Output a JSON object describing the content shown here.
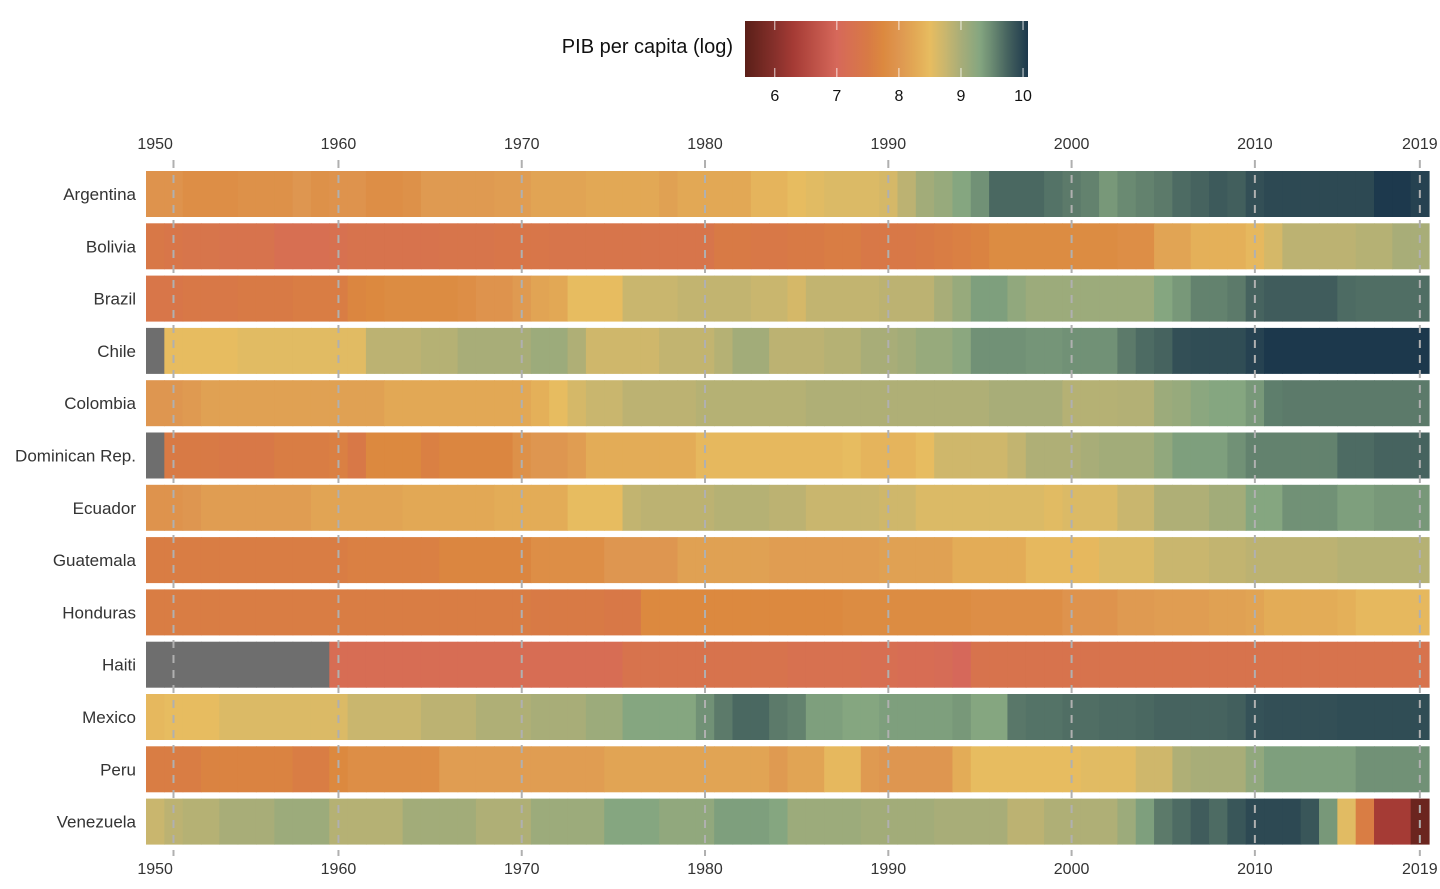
{
  "chart_data": {
    "type": "heatmap",
    "title": "PIB per capita (log)",
    "xlabel": "",
    "ylabel": "",
    "x_ticks": [
      "1950",
      "1960",
      "1970",
      "1980",
      "1990",
      "2000",
      "2010",
      "2019"
    ],
    "x_tick_years": [
      1950,
      1960,
      1970,
      1980,
      1990,
      2000,
      2010,
      2019
    ],
    "x_range": [
      1950,
      2019
    ],
    "colorbar": {
      "label": "PIB per capita (log)",
      "range": [
        5.52,
        10.08
      ],
      "ticks": [
        "6",
        "7",
        "8",
        "9",
        "10"
      ],
      "tick_values": [
        6,
        7,
        8,
        9,
        10
      ],
      "stops": [
        {
          "v": 5.52,
          "c": "#5a1f18"
        },
        {
          "v": 6.0,
          "c": "#86302b"
        },
        {
          "v": 6.3,
          "c": "#a53b35"
        },
        {
          "v": 7.0,
          "c": "#d6685a"
        },
        {
          "v": 7.5,
          "c": "#d87a45"
        },
        {
          "v": 7.75,
          "c": "#dc893f"
        },
        {
          "v": 8.0,
          "c": "#de9650"
        },
        {
          "v": 8.25,
          "c": "#e2a855"
        },
        {
          "v": 8.5,
          "c": "#e7bc60"
        },
        {
          "v": 8.75,
          "c": "#c9b66e"
        },
        {
          "v": 9.0,
          "c": "#a8ad78"
        },
        {
          "v": 9.3,
          "c": "#85a680"
        },
        {
          "v": 9.5,
          "c": "#6a8a72"
        },
        {
          "v": 9.75,
          "c": "#46635f"
        },
        {
          "v": 10.08,
          "c": "#1c384c"
        }
      ],
      "missing_color": "#6e6e6e"
    },
    "grid": "dashed vertical",
    "legend_position": "top-center",
    "rows": [
      {
        "country": "Argentina",
        "values": [
          7.95,
          7.95,
          7.85,
          7.85,
          7.85,
          7.9,
          7.9,
          7.9,
          8.0,
          7.9,
          7.95,
          7.95,
          7.85,
          7.85,
          7.9,
          8.05,
          8.05,
          8.05,
          8.05,
          8.1,
          8.1,
          8.2,
          8.2,
          8.2,
          8.25,
          8.25,
          8.25,
          8.25,
          8.15,
          8.25,
          8.25,
          8.25,
          8.25,
          8.4,
          8.4,
          8.5,
          8.55,
          8.6,
          8.6,
          8.6,
          8.65,
          8.85,
          9.05,
          9.15,
          9.3,
          9.45,
          9.72,
          9.72,
          9.72,
          9.65,
          9.6,
          9.55,
          9.4,
          9.5,
          9.55,
          9.6,
          9.7,
          9.75,
          9.82,
          9.78,
          9.9,
          9.95,
          9.95,
          9.95,
          9.95,
          9.95,
          9.95,
          10.07,
          10.07,
          10.0
        ]
      },
      {
        "country": "Bolivia",
        "values": [
          7.45,
          7.4,
          7.35,
          7.35,
          7.3,
          7.3,
          7.3,
          7.2,
          7.2,
          7.2,
          7.25,
          7.3,
          7.3,
          7.3,
          7.3,
          7.3,
          7.35,
          7.35,
          7.35,
          7.4,
          7.4,
          7.4,
          7.35,
          7.35,
          7.35,
          7.35,
          7.35,
          7.35,
          7.35,
          7.35,
          7.35,
          7.5,
          7.5,
          7.45,
          7.45,
          7.5,
          7.5,
          7.55,
          7.55,
          7.45,
          7.45,
          7.45,
          7.5,
          7.55,
          7.6,
          7.65,
          7.8,
          7.8,
          7.8,
          7.8,
          7.8,
          7.8,
          7.8,
          7.85,
          7.85,
          8.2,
          8.2,
          8.35,
          8.35,
          8.35,
          8.45,
          8.65,
          8.85,
          8.85,
          8.85,
          8.85,
          8.9,
          8.9,
          9.0,
          9.0
        ]
      },
      {
        "country": "Brazil",
        "values": [
          7.4,
          7.4,
          7.45,
          7.45,
          7.45,
          7.5,
          7.5,
          7.5,
          7.55,
          7.55,
          7.55,
          7.7,
          7.75,
          7.8,
          7.8,
          7.8,
          7.8,
          7.85,
          7.95,
          7.95,
          8.05,
          8.2,
          8.25,
          8.5,
          8.5,
          8.5,
          8.75,
          8.75,
          8.75,
          8.8,
          8.8,
          8.8,
          8.8,
          8.75,
          8.75,
          8.65,
          8.8,
          8.8,
          8.8,
          8.8,
          8.85,
          8.85,
          8.85,
          9.0,
          9.15,
          9.35,
          9.35,
          9.2,
          9.1,
          9.1,
          9.1,
          9.1,
          9.1,
          9.1,
          9.1,
          9.3,
          9.4,
          9.55,
          9.55,
          9.6,
          9.75,
          9.8,
          9.8,
          9.8,
          9.8,
          9.7,
          9.68,
          9.68,
          9.68,
          9.68
        ]
      },
      {
        "country": "Chile",
        "values": [
          null,
          8.5,
          8.5,
          8.5,
          8.5,
          8.55,
          8.55,
          8.55,
          8.55,
          8.55,
          8.55,
          8.55,
          8.85,
          8.85,
          8.85,
          8.9,
          8.9,
          9.0,
          9.0,
          9.0,
          9.0,
          9.1,
          9.1,
          8.95,
          8.7,
          8.7,
          8.7,
          8.7,
          8.8,
          8.8,
          8.8,
          8.9,
          9.05,
          9.05,
          8.85,
          8.85,
          8.85,
          8.9,
          8.9,
          9.0,
          9.0,
          9.05,
          9.15,
          9.15,
          9.25,
          9.45,
          9.45,
          9.45,
          9.42,
          9.42,
          9.45,
          9.45,
          9.45,
          9.6,
          9.7,
          9.75,
          9.9,
          9.92,
          9.92,
          9.92,
          10.0,
          10.08,
          10.08,
          10.08,
          10.08,
          10.08,
          10.08,
          10.08,
          10.08,
          10.08
        ]
      },
      {
        "country": "Colombia",
        "values": [
          8.0,
          8.0,
          8.05,
          8.15,
          8.15,
          8.15,
          8.15,
          8.15,
          8.15,
          8.15,
          8.15,
          8.15,
          8.15,
          8.25,
          8.25,
          8.25,
          8.25,
          8.25,
          8.25,
          8.25,
          8.25,
          8.35,
          8.5,
          8.65,
          8.75,
          8.75,
          8.85,
          8.85,
          8.85,
          8.85,
          8.9,
          8.9,
          8.9,
          8.9,
          8.9,
          8.9,
          8.95,
          8.95,
          8.95,
          8.95,
          8.95,
          8.95,
          8.95,
          8.95,
          8.95,
          8.95,
          9.0,
          9.0,
          9.0,
          9.0,
          8.9,
          8.9,
          8.9,
          8.92,
          8.92,
          9.1,
          9.15,
          9.25,
          9.3,
          9.3,
          9.4,
          9.58,
          9.6,
          9.6,
          9.6,
          9.6,
          9.6,
          9.6,
          9.6,
          9.6
        ]
      },
      {
        "country": "Dominican Rep.",
        "values": [
          null,
          7.5,
          7.5,
          7.5,
          7.45,
          7.45,
          7.45,
          7.55,
          7.55,
          7.55,
          7.6,
          7.45,
          7.75,
          7.75,
          7.75,
          7.6,
          7.7,
          7.7,
          7.7,
          7.7,
          7.9,
          8.0,
          8.0,
          8.1,
          8.3,
          8.3,
          8.3,
          8.3,
          8.3,
          8.3,
          8.45,
          8.45,
          8.45,
          8.45,
          8.45,
          8.45,
          8.45,
          8.45,
          8.5,
          8.4,
          8.4,
          8.4,
          8.5,
          8.7,
          8.7,
          8.7,
          8.7,
          8.8,
          8.95,
          8.95,
          8.95,
          9.0,
          9.05,
          9.05,
          9.05,
          9.2,
          9.35,
          9.35,
          9.35,
          9.45,
          9.55,
          9.55,
          9.55,
          9.55,
          9.55,
          9.7,
          9.7,
          9.75,
          9.75,
          9.75
        ]
      },
      {
        "country": "Ecuador",
        "values": [
          7.95,
          7.95,
          8.0,
          8.1,
          8.1,
          8.1,
          8.1,
          8.1,
          8.1,
          8.2,
          8.2,
          8.2,
          8.2,
          8.2,
          8.25,
          8.25,
          8.25,
          8.25,
          8.25,
          8.3,
          8.3,
          8.3,
          8.3,
          8.5,
          8.5,
          8.5,
          8.8,
          8.85,
          8.85,
          8.85,
          8.85,
          8.9,
          8.9,
          8.9,
          8.85,
          8.85,
          8.75,
          8.75,
          8.75,
          8.75,
          8.7,
          8.7,
          8.6,
          8.6,
          8.6,
          8.6,
          8.6,
          8.6,
          8.6,
          8.55,
          8.6,
          8.6,
          8.6,
          8.75,
          8.75,
          8.95,
          8.95,
          8.95,
          9.05,
          9.05,
          9.3,
          9.3,
          9.45,
          9.45,
          9.45,
          9.35,
          9.35,
          9.4,
          9.4,
          9.4
        ]
      },
      {
        "country": "Guatemala",
        "values": [
          7.55,
          7.55,
          7.55,
          7.55,
          7.55,
          7.55,
          7.55,
          7.55,
          7.55,
          7.55,
          7.55,
          7.6,
          7.6,
          7.6,
          7.6,
          7.6,
          7.7,
          7.7,
          7.7,
          7.7,
          7.7,
          7.85,
          7.85,
          7.85,
          7.85,
          8.0,
          8.0,
          8.0,
          8.0,
          8.15,
          8.15,
          8.15,
          8.15,
          8.15,
          8.1,
          8.1,
          8.1,
          8.1,
          8.1,
          8.1,
          8.15,
          8.15,
          8.15,
          8.15,
          8.3,
          8.3,
          8.3,
          8.3,
          8.45,
          8.45,
          8.45,
          8.45,
          8.6,
          8.6,
          8.6,
          8.75,
          8.75,
          8.75,
          8.8,
          8.8,
          8.85,
          8.85,
          8.85,
          8.85,
          8.85,
          8.9,
          8.9,
          8.9,
          8.9,
          8.9
        ]
      },
      {
        "country": "Honduras",
        "values": [
          7.55,
          7.55,
          7.55,
          7.55,
          7.55,
          7.55,
          7.55,
          7.55,
          7.55,
          7.55,
          7.55,
          7.55,
          7.55,
          7.55,
          7.55,
          7.55,
          7.55,
          7.55,
          7.55,
          7.55,
          7.55,
          7.5,
          7.5,
          7.5,
          7.5,
          7.45,
          7.45,
          7.75,
          7.75,
          7.75,
          7.75,
          7.75,
          7.75,
          7.75,
          7.75,
          7.75,
          7.75,
          7.75,
          7.8,
          7.8,
          7.8,
          7.8,
          7.8,
          7.8,
          7.8,
          7.85,
          7.85,
          7.85,
          7.85,
          7.85,
          7.95,
          7.95,
          7.95,
          8.05,
          8.05,
          8.1,
          8.1,
          8.1,
          8.15,
          8.15,
          8.2,
          8.3,
          8.3,
          8.3,
          8.3,
          8.35,
          8.45,
          8.45,
          8.45,
          8.45
        ]
      },
      {
        "country": "Haiti",
        "values": [
          null,
          null,
          null,
          null,
          null,
          null,
          null,
          null,
          null,
          null,
          7.15,
          7.15,
          7.15,
          7.15,
          7.15,
          7.15,
          7.15,
          7.15,
          7.15,
          7.15,
          7.15,
          7.15,
          7.15,
          7.15,
          7.15,
          7.15,
          7.3,
          7.3,
          7.3,
          7.3,
          7.3,
          7.3,
          7.3,
          7.3,
          7.3,
          7.25,
          7.25,
          7.25,
          7.25,
          7.2,
          7.2,
          7.15,
          7.15,
          7.1,
          7.0,
          7.3,
          7.3,
          7.3,
          7.3,
          7.3,
          7.3,
          7.3,
          7.3,
          7.3,
          7.3,
          7.3,
          7.3,
          7.3,
          7.3,
          7.3,
          7.3,
          7.3,
          7.3,
          7.3,
          7.3,
          7.3,
          7.3,
          7.3,
          7.3,
          7.3
        ]
      },
      {
        "country": "Mexico",
        "values": [
          8.45,
          8.5,
          8.5,
          8.5,
          8.6,
          8.6,
          8.6,
          8.6,
          8.6,
          8.6,
          8.6,
          8.75,
          8.75,
          8.75,
          8.75,
          8.85,
          8.85,
          8.85,
          8.95,
          8.95,
          8.95,
          9.0,
          9.0,
          9.0,
          9.1,
          9.1,
          9.3,
          9.3,
          9.3,
          9.3,
          9.45,
          9.6,
          9.72,
          9.72,
          9.6,
          9.55,
          9.35,
          9.35,
          9.3,
          9.3,
          9.35,
          9.35,
          9.35,
          9.35,
          9.4,
          9.3,
          9.3,
          9.62,
          9.65,
          9.65,
          9.68,
          9.68,
          9.7,
          9.7,
          9.72,
          9.75,
          9.75,
          9.75,
          9.75,
          9.78,
          9.88,
          9.9,
          9.9,
          9.9,
          9.9,
          9.92,
          9.92,
          9.92,
          9.92,
          9.92
        ]
      },
      {
        "country": "Peru",
        "values": [
          7.55,
          7.55,
          7.55,
          7.65,
          7.65,
          7.65,
          7.65,
          7.65,
          7.55,
          7.55,
          7.75,
          7.85,
          7.85,
          7.85,
          7.85,
          7.85,
          8.1,
          8.1,
          8.1,
          8.1,
          8.1,
          8.1,
          8.1,
          8.1,
          8.1,
          8.2,
          8.2,
          8.2,
          8.2,
          8.2,
          8.2,
          8.2,
          8.2,
          8.2,
          8.05,
          8.2,
          8.2,
          8.45,
          8.45,
          8.05,
          8.0,
          8.0,
          8.0,
          8.0,
          8.3,
          8.5,
          8.5,
          8.5,
          8.5,
          8.5,
          8.5,
          8.55,
          8.55,
          8.55,
          8.7,
          8.7,
          8.95,
          9.0,
          9.0,
          9.0,
          9.2,
          9.35,
          9.35,
          9.35,
          9.35,
          9.35,
          9.45,
          9.45,
          9.45,
          9.45
        ]
      },
      {
        "country": "Venezuela",
        "values": [
          8.75,
          8.85,
          8.9,
          8.9,
          9.0,
          9.0,
          9.0,
          9.1,
          9.1,
          9.1,
          8.9,
          8.9,
          8.9,
          8.9,
          9.05,
          9.05,
          9.05,
          9.05,
          8.95,
          8.95,
          8.95,
          9.1,
          9.1,
          9.1,
          9.1,
          9.3,
          9.3,
          9.3,
          9.2,
          9.2,
          9.2,
          9.35,
          9.35,
          9.35,
          9.3,
          9.1,
          9.1,
          9.1,
          9.1,
          9.05,
          9.05,
          9.05,
          9.05,
          9.0,
          9.0,
          9.0,
          9.0,
          8.85,
          8.85,
          8.95,
          8.95,
          8.95,
          8.95,
          9.1,
          9.35,
          9.6,
          9.7,
          9.8,
          9.7,
          9.85,
          9.95,
          9.95,
          9.95,
          9.85,
          9.4,
          8.55,
          7.55,
          6.3,
          6.3,
          5.7
        ]
      }
    ]
  }
}
